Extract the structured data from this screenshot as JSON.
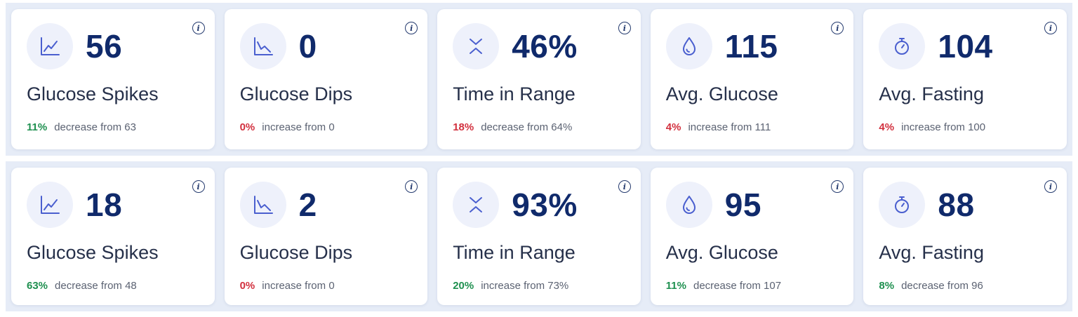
{
  "colors": {
    "value": "#102a6b",
    "icon": "#4a5fcf",
    "good": "#1f9050",
    "bad": "#d2303e",
    "panel": "#e6ecf7"
  },
  "rows": [
    [
      {
        "icon": "line-chart-up-icon",
        "value": "56",
        "label": "Glucose Spikes",
        "pct": "11%",
        "pct_color": "green",
        "desc": "decrease from 63"
      },
      {
        "icon": "line-chart-down-icon",
        "value": "0",
        "label": "Glucose Dips",
        "pct": "0%",
        "pct_color": "red",
        "desc": "increase from 0"
      },
      {
        "icon": "range-chevrons-icon",
        "value": "46%",
        "label": "Time in Range",
        "pct": "18%",
        "pct_color": "red",
        "desc": "decrease from 64%"
      },
      {
        "icon": "droplet-icon",
        "value": "115",
        "label": "Avg. Glucose",
        "pct": "4%",
        "pct_color": "red",
        "desc": "increase from 111"
      },
      {
        "icon": "stopwatch-icon",
        "value": "104",
        "label": "Avg. Fasting",
        "pct": "4%",
        "pct_color": "red",
        "desc": "increase from 100"
      }
    ],
    [
      {
        "icon": "line-chart-up-icon",
        "value": "18",
        "label": "Glucose Spikes",
        "pct": "63%",
        "pct_color": "green",
        "desc": "decrease from 48"
      },
      {
        "icon": "line-chart-down-icon",
        "value": "2",
        "label": "Glucose Dips",
        "pct": "0%",
        "pct_color": "red",
        "desc": "increase from 0"
      },
      {
        "icon": "range-chevrons-icon",
        "value": "93%",
        "label": "Time in Range",
        "pct": "20%",
        "pct_color": "green",
        "desc": "increase from 73%"
      },
      {
        "icon": "droplet-icon",
        "value": "95",
        "label": "Avg. Glucose",
        "pct": "11%",
        "pct_color": "green",
        "desc": "decrease from 107"
      },
      {
        "icon": "stopwatch-icon",
        "value": "88",
        "label": "Avg. Fasting",
        "pct": "8%",
        "pct_color": "green",
        "desc": "decrease from 96"
      }
    ]
  ],
  "info_glyph": "i"
}
